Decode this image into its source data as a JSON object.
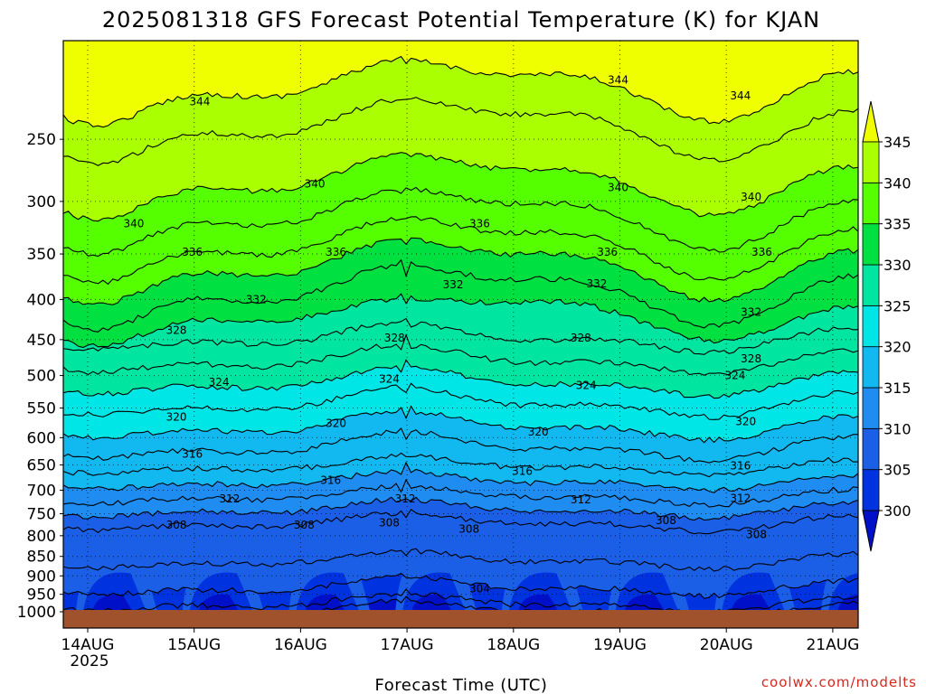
{
  "chart_data": {
    "type": "heatmap",
    "title": "2025081318 GFS Forecast Potential Temperature (K) for KJAN",
    "xlabel": "Forecast Time (UTC)",
    "ylabel": "",
    "credit": "coolwx.com/modelts",
    "x_ticks": [
      "14AUG",
      "15AUG",
      "16AUG",
      "17AUG",
      "18AUG",
      "19AUG",
      "20AUG",
      "21AUG"
    ],
    "x_year": "2025",
    "y_ticks": [
      250,
      300,
      350,
      400,
      450,
      500,
      550,
      600,
      650,
      700,
      750,
      800,
      850,
      900,
      950,
      1000
    ],
    "ylim_hpa": [
      1000,
      200
    ],
    "y_scale": "log",
    "grid": "dotted",
    "colorbar": {
      "levels": [
        300,
        305,
        310,
        315,
        320,
        325,
        330,
        335,
        340,
        345
      ],
      "colors": [
        "#0010c8",
        "#0033e0",
        "#1a5fe6",
        "#1e8cf0",
        "#12b8f0",
        "#00e6e6",
        "#00e6a0",
        "#00e040",
        "#55ff00",
        "#aaff00",
        "#f0ff00"
      ],
      "extend": "both"
    },
    "contour_interval": 4,
    "contour_profile": [
      {
        "theta": 344,
        "hpa": 214
      },
      {
        "theta": 342,
        "hpa": 240
      },
      {
        "theta": 340,
        "hpa": 282
      },
      {
        "theta": 338,
        "hpa": 312
      },
      {
        "theta": 336,
        "hpa": 340
      },
      {
        "theta": 334,
        "hpa": 362
      },
      {
        "theta": 332,
        "hpa": 390
      },
      {
        "theta": 330,
        "hpa": 418
      },
      {
        "theta": 328,
        "hpa": 448
      },
      {
        "theta": 326,
        "hpa": 478
      },
      {
        "theta": 324,
        "hpa": 510
      },
      {
        "theta": 322,
        "hpa": 542
      },
      {
        "theta": 320,
        "hpa": 580
      },
      {
        "theta": 318,
        "hpa": 616
      },
      {
        "theta": 316,
        "hpa": 652
      },
      {
        "theta": 314,
        "hpa": 682
      },
      {
        "theta": 312,
        "hpa": 712
      },
      {
        "theta": 310,
        "hpa": 740
      },
      {
        "theta": 308,
        "hpa": 770
      },
      {
        "theta": 306,
        "hpa": 860
      },
      {
        "theta": 304,
        "hpa": 930
      },
      {
        "theta": 302,
        "hpa": 975
      },
      {
        "theta": 300,
        "hpa": 995
      }
    ],
    "contour_labels": [
      {
        "value": "344",
        "day": 1.07,
        "hpa": 224
      },
      {
        "value": "344",
        "day": 5.0,
        "hpa": 210
      },
      {
        "value": "344",
        "day": 6.15,
        "hpa": 220
      },
      {
        "value": "340",
        "day": 0.45,
        "hpa": 320
      },
      {
        "value": "340",
        "day": 2.15,
        "hpa": 285
      },
      {
        "value": "340",
        "day": 5.0,
        "hpa": 288
      },
      {
        "value": "340",
        "day": 6.25,
        "hpa": 296
      },
      {
        "value": "336",
        "day": 1.0,
        "hpa": 348
      },
      {
        "value": "336",
        "day": 2.35,
        "hpa": 348
      },
      {
        "value": "336",
        "day": 3.7,
        "hpa": 320
      },
      {
        "value": "336",
        "day": 4.9,
        "hpa": 348
      },
      {
        "value": "336",
        "day": 6.35,
        "hpa": 348
      },
      {
        "value": "332",
        "day": 1.6,
        "hpa": 400
      },
      {
        "value": "332",
        "day": 3.45,
        "hpa": 383
      },
      {
        "value": "332",
        "day": 4.8,
        "hpa": 382
      },
      {
        "value": "332",
        "day": 6.25,
        "hpa": 415
      },
      {
        "value": "328",
        "day": 0.85,
        "hpa": 438
      },
      {
        "value": "328",
        "day": 2.9,
        "hpa": 448
      },
      {
        "value": "328",
        "day": 4.65,
        "hpa": 448
      },
      {
        "value": "328",
        "day": 6.25,
        "hpa": 476
      },
      {
        "value": "324",
        "day": 1.25,
        "hpa": 510
      },
      {
        "value": "324",
        "day": 2.85,
        "hpa": 505
      },
      {
        "value": "324",
        "day": 4.7,
        "hpa": 515
      },
      {
        "value": "324",
        "day": 6.1,
        "hpa": 500
      },
      {
        "value": "320",
        "day": 0.85,
        "hpa": 565
      },
      {
        "value": "320",
        "day": 2.35,
        "hpa": 575
      },
      {
        "value": "320",
        "day": 4.25,
        "hpa": 590
      },
      {
        "value": "320",
        "day": 6.2,
        "hpa": 572
      },
      {
        "value": "316",
        "day": 1.0,
        "hpa": 630
      },
      {
        "value": "316",
        "day": 2.3,
        "hpa": 680
      },
      {
        "value": "316",
        "day": 4.1,
        "hpa": 662
      },
      {
        "value": "316",
        "day": 6.15,
        "hpa": 652
      },
      {
        "value": "312",
        "day": 1.35,
        "hpa": 718
      },
      {
        "value": "312",
        "day": 3.0,
        "hpa": 718
      },
      {
        "value": "312",
        "day": 4.65,
        "hpa": 720
      },
      {
        "value": "312",
        "day": 6.15,
        "hpa": 717
      },
      {
        "value": "308",
        "day": 0.85,
        "hpa": 775
      },
      {
        "value": "308",
        "day": 2.05,
        "hpa": 775
      },
      {
        "value": "308",
        "day": 2.85,
        "hpa": 770
      },
      {
        "value": "308",
        "day": 3.6,
        "hpa": 785
      },
      {
        "value": "308",
        "day": 5.45,
        "hpa": 765
      },
      {
        "value": "308",
        "day": 6.3,
        "hpa": 797
      },
      {
        "value": "304",
        "day": 3.7,
        "hpa": 935
      }
    ]
  }
}
